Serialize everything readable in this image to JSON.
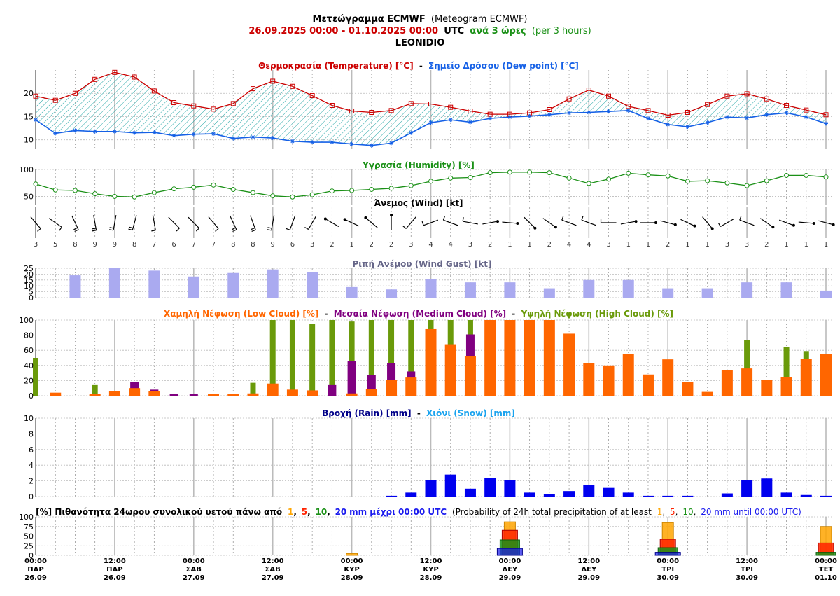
{
  "header": {
    "title_gr": "Μετεώγραμμα ECMWF",
    "title_en": "(Meteogram ECMWF)",
    "period": "26.09.2025 00:00 - 01.10.2025 00:00",
    "utc": "UTC",
    "step_gr": "ανά 3 ώρες",
    "step_en": "(per 3 hours)",
    "location": "LEONIDIO"
  },
  "colors": {
    "temperature": "#cc0000",
    "dewpoint": "#1560e6",
    "humidity": "#1a9016",
    "gust": "#aaaaf0",
    "low_cloud": "#ff6600",
    "medium_cloud": "#800080",
    "high_cloud": "#6a9a0a",
    "rain": "#0000ee",
    "snow": "#1aa3ee",
    "prob1": "#ffa500",
    "prob5": "#ff2200",
    "prob10": "#1a9016",
    "prob20": "#1a1aee",
    "fill": "#22a5a5"
  },
  "legends": {
    "temp_gr": "Θερμοκρασία (Temperature) [°C]",
    "dash": "-",
    "dew_gr": "Σημείο Δρόσου (Dew point) [°C]",
    "humidity": "Υγρασία (Humidity) [%]",
    "wind": "Άνεμος (Wind) [kt]",
    "gust": "Ριπή Ανέμου (Wind Gust) [kt]",
    "low_cloud": "Χαμηλή Νέφωση (Low Cloud) [%]",
    "medium_cloud": "Μεσαία Νέφωση (Medium Cloud) [%]",
    "high_cloud": "Υψηλή Νέφωση (High Cloud) [%]",
    "rain": "Βροχή (Rain) [mm]",
    "snow": "Χιόνι (Snow) [mm]",
    "prob_prefix": "[%] Πιθανότητα 24ωρου συνολικού υετού πάνω από",
    "prob_until": "mm μέχρι 00:00 UTC",
    "prob_en_prefix": "(Probability of 24h total precipitation of at least",
    "prob_en_until": "mm until 00:00 UTC)",
    "t1": "1",
    "t5": "5",
    "t10": "10",
    "t20": "20",
    "comma": ","
  },
  "chart_data": [
    {
      "type": "line",
      "name": "temperature-dewpoint",
      "x_step_hours": 3,
      "ylim": [
        8,
        25
      ],
      "yticks": [
        10,
        15,
        20
      ],
      "series": [
        {
          "name": "Θερμοκρασία (Temperature) [°C]",
          "values": [
            19.4,
            18.5,
            20,
            23,
            24.5,
            23.5,
            20.5,
            18,
            17.3,
            16.6,
            17.8,
            21,
            22.6,
            21.5,
            19.5,
            17.4,
            16.2,
            15.9,
            16.3,
            17.8,
            17.7,
            17,
            16.2,
            15.5,
            15.5,
            15.8,
            16.5,
            18.8,
            20.7,
            19.4,
            17.2,
            16.3,
            15.3,
            15.9,
            17.6,
            19.4,
            19.9,
            18.8,
            17.4,
            16.4,
            15.4
          ]
        },
        {
          "name": "Σημείο Δρόσου (Dew point) [°C]",
          "values": [
            14.3,
            11.4,
            12,
            11.8,
            11.8,
            11.5,
            11.6,
            10.9,
            11.2,
            11.3,
            10.3,
            10.6,
            10.4,
            9.7,
            9.5,
            9.5,
            9.1,
            8.8,
            9.3,
            11.5,
            13.7,
            14.3,
            13.8,
            14.6,
            14.9,
            15.1,
            15.4,
            15.8,
            15.9,
            16.1,
            16.3,
            14.6,
            13.3,
            12.8,
            13.7,
            14.9,
            14.7,
            15.4,
            15.8,
            14.9,
            13.5
          ]
        }
      ]
    },
    {
      "type": "line",
      "name": "humidity",
      "ylim": [
        35,
        100
      ],
      "yticks": [
        50,
        100
      ],
      "series": [
        {
          "name": "Υγρασία (Humidity) [%]",
          "values": [
            73,
            62,
            61,
            55,
            50,
            49,
            57,
            64,
            67,
            71,
            63,
            57,
            51,
            49,
            53,
            60,
            61,
            63,
            65,
            70,
            78,
            84,
            85,
            94,
            95,
            95,
            94,
            84,
            74,
            82,
            93,
            90,
            88,
            78,
            79,
            75,
            70,
            79,
            89,
            89,
            86
          ]
        }
      ]
    },
    {
      "type": "wind",
      "name": "wind",
      "speeds_kt": [
        3,
        5,
        8,
        9,
        9,
        8,
        7,
        6,
        7,
        7,
        8,
        8,
        9,
        6,
        3,
        2,
        1,
        2,
        2,
        3,
        4,
        4,
        3,
        2,
        1,
        1,
        2,
        4,
        4,
        3,
        1,
        1,
        2,
        1,
        1,
        3,
        3,
        2,
        1,
        1,
        1
      ],
      "directions_deg": [
        320,
        305,
        335,
        350,
        10,
        15,
        350,
        315,
        315,
        320,
        335,
        340,
        10,
        20,
        30,
        300,
        295,
        310,
        0,
        40,
        70,
        110,
        100,
        80,
        95,
        135,
        125,
        110,
        110,
        90,
        80,
        90,
        105,
        115,
        140,
        60,
        110,
        125,
        110,
        95,
        105
      ]
    },
    {
      "type": "bar",
      "name": "gust",
      "ylim": [
        0,
        25
      ],
      "yticks": [
        0,
        5,
        10,
        15,
        20,
        25
      ],
      "series": [
        {
          "name": "Ριπή Ανέμου (Wind Gust) [kt]",
          "values": [
            null,
            null,
            19,
            null,
            25,
            null,
            23,
            null,
            18,
            null,
            21,
            null,
            24,
            null,
            22,
            null,
            9,
            null,
            7,
            null,
            16,
            null,
            13,
            null,
            13,
            null,
            8,
            null,
            15,
            null,
            15,
            null,
            8,
            null,
            8,
            null,
            13,
            null,
            13,
            null,
            6
          ]
        }
      ]
    },
    {
      "type": "bar",
      "name": "clouds",
      "ylim": [
        0,
        100
      ],
      "yticks": [
        0,
        20,
        40,
        60,
        80,
        100
      ],
      "series": [
        {
          "name": "Υψηλή Νέφωση (High Cloud) [%]",
          "values": [
            50,
            0,
            0,
            14,
            0,
            0,
            0,
            0,
            0,
            0,
            0,
            17,
            100,
            100,
            95,
            100,
            98,
            100,
            100,
            100,
            100,
            100,
            100,
            100,
            100,
            100,
            100,
            0,
            0,
            0,
            0,
            0,
            0,
            0,
            0,
            0,
            74,
            0,
            64,
            59,
            0
          ]
        },
        {
          "name": "Μεσαία Νέφωση (Medium Cloud) [%]",
          "values": [
            0,
            0,
            0,
            0,
            0,
            18,
            8,
            2,
            2,
            0,
            0,
            0,
            0,
            0,
            0,
            14,
            46,
            27,
            43,
            32,
            0,
            0,
            81,
            0,
            0,
            0,
            0,
            0,
            0,
            0,
            0,
            0,
            0,
            0,
            0,
            0,
            0,
            0,
            0,
            0,
            0
          ]
        },
        {
          "name": "Χαμηλή Νέφωση (Low Cloud) [%]",
          "values": [
            0,
            4,
            0,
            2,
            6,
            10,
            6,
            0,
            0,
            2,
            2,
            3,
            16,
            8,
            7,
            0,
            3,
            9,
            21,
            24,
            88,
            68,
            52,
            100,
            100,
            100,
            100,
            82,
            43,
            40,
            55,
            28,
            48,
            18,
            5,
            34,
            36,
            21,
            25,
            49,
            55
          ]
        }
      ]
    },
    {
      "type": "bar",
      "name": "precipitation",
      "ylim": [
        0,
        10
      ],
      "yticks": [
        0,
        2,
        4,
        6,
        8,
        10
      ],
      "series": [
        {
          "name": "Βροχή (Rain) [mm]",
          "values": [
            0,
            0,
            0,
            0,
            0,
            0,
            0,
            0,
            0,
            0,
            0,
            0,
            0,
            0,
            0,
            0,
            0,
            0,
            0.1,
            0.5,
            2.1,
            2.8,
            1,
            2.4,
            2.1,
            0.5,
            0.3,
            0.7,
            1.5,
            1.1,
            0.5,
            0.1,
            0.1,
            0.1,
            0,
            0.4,
            2.1,
            2.3,
            0.5,
            0.2,
            0.1
          ]
        },
        {
          "name": "Χιόνι (Snow) [mm]",
          "values": []
        }
      ]
    },
    {
      "type": "bar",
      "name": "probability",
      "ylim": [
        0,
        100
      ],
      "yticks": [
        0,
        25,
        50,
        75,
        100
      ],
      "days": [
        "28.09",
        "29.09",
        "30.09",
        "01.10"
      ],
      "series": [
        {
          "name": "1",
          "values": [
            5,
            87,
            85,
            75
          ]
        },
        {
          "name": "5",
          "values": [
            0,
            65,
            42,
            32
          ]
        },
        {
          "name": "10",
          "values": [
            0,
            40,
            20,
            8
          ]
        },
        {
          "name": "20",
          "values": [
            0,
            18,
            8,
            0
          ]
        }
      ]
    }
  ],
  "x_axis": {
    "labels": [
      {
        "time": "00:00",
        "day": "ΠΑΡ",
        "date": "26.09"
      },
      {
        "time": "12:00",
        "day": "ΠΑΡ",
        "date": "26.09"
      },
      {
        "time": "00:00",
        "day": "ΣΑΒ",
        "date": "27.09"
      },
      {
        "time": "12:00",
        "day": "ΣΑΒ",
        "date": "27.09"
      },
      {
        "time": "00:00",
        "day": "ΚΥΡ",
        "date": "28.09"
      },
      {
        "time": "12:00",
        "day": "ΚΥΡ",
        "date": "28.09"
      },
      {
        "time": "00:00",
        "day": "ΔΕΥ",
        "date": "29.09"
      },
      {
        "time": "12:00",
        "day": "ΔΕΥ",
        "date": "29.09"
      },
      {
        "time": "00:00",
        "day": "ΤΡΙ",
        "date": "30.09"
      },
      {
        "time": "12:00",
        "day": "ΤΡΙ",
        "date": "30.09"
      },
      {
        "time": "00:00",
        "day": "ΤΕΤ",
        "date": "01.10"
      }
    ]
  }
}
